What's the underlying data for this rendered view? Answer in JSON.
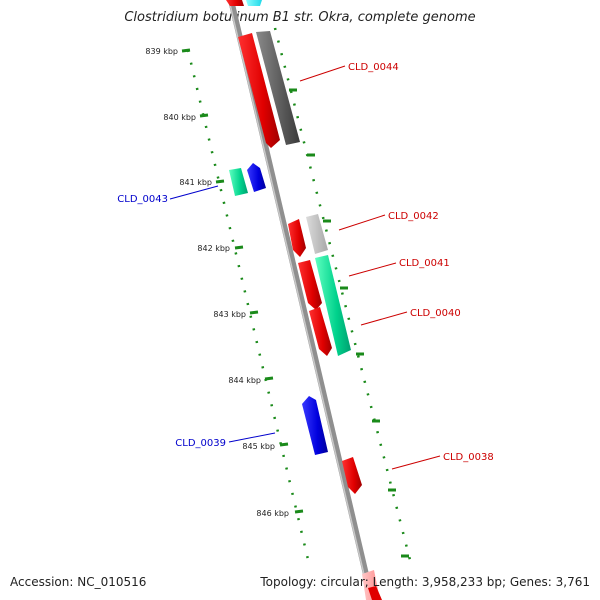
{
  "title": "Clostridium botulinum B1 str. Okra, complete genome",
  "footer": {
    "accession": "Accession: NC_010516",
    "summary": "Topology: circular; Length: 3,958,233 bp; Genes: 3,761"
  },
  "colors": {
    "backbone": "#8c8c8c",
    "tick": "#1a8a1a",
    "label_red": "#cc0000",
    "label_blue": "#0000cc"
  },
  "ticks": [
    {
      "label": "839 kbp"
    },
    {
      "label": "840 kbp"
    },
    {
      "label": "841 kbp"
    },
    {
      "label": "842 kbp"
    },
    {
      "label": "843 kbp"
    },
    {
      "label": "844 kbp"
    },
    {
      "label": "845 kbp"
    },
    {
      "label": "846 kbp"
    }
  ],
  "genes": [
    {
      "label": "CLD_0044",
      "color": "#e00000"
    },
    {
      "label": "CLD_0043",
      "color": "#00d28c"
    },
    {
      "label": "CLD_0042",
      "color": "#e00000"
    },
    {
      "label": "CLD_0041",
      "color": "#e00000"
    },
    {
      "label": "CLD_0040",
      "color": "#e00000"
    },
    {
      "label": "CLD_0039",
      "color": "#0000dd"
    },
    {
      "label": "CLD_0038",
      "color": "#e00000"
    }
  ]
}
